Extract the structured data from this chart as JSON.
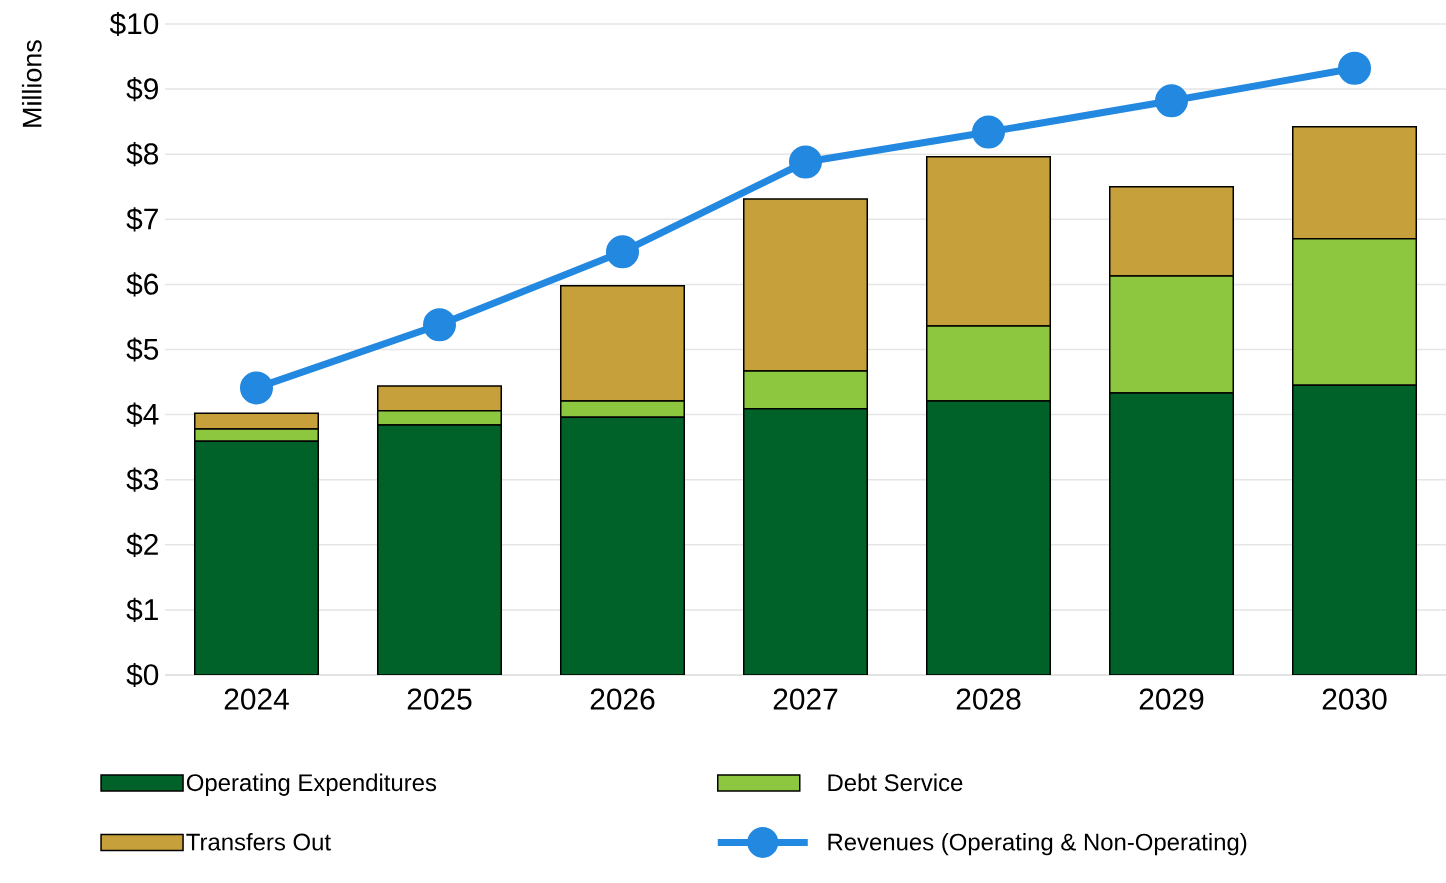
{
  "chart_data": {
    "type": "bar",
    "stacked": true,
    "ylabel": "Millions",
    "categories": [
      "2024",
      "2025",
      "2026",
      "2027",
      "2028",
      "2029",
      "2030"
    ],
    "series": [
      {
        "name": "Operating Expenditures",
        "color": "#006228",
        "values": [
          3.59,
          3.84,
          3.96,
          4.09,
          4.21,
          4.33,
          4.45
        ]
      },
      {
        "name": "Debt Service",
        "color": "#8dc63f",
        "values": [
          0.19,
          0.22,
          0.25,
          0.58,
          1.15,
          1.8,
          2.25
        ]
      },
      {
        "name": "Transfers Out",
        "color": "#c6a03a",
        "values": [
          0.24,
          0.38,
          1.77,
          2.64,
          2.6,
          1.37,
          1.72
        ]
      },
      {
        "name": "Revenues (Operating & Non-Operating)",
        "type": "line",
        "marker": "circle",
        "color": "#2288e0",
        "values": [
          4.41,
          5.38,
          6.5,
          7.88,
          8.34,
          8.82,
          9.32
        ]
      }
    ],
    "ylim": [
      0,
      10
    ],
    "yticks": [
      {
        "value": 0,
        "label": "$0"
      },
      {
        "value": 1,
        "label": "$1"
      },
      {
        "value": 2,
        "label": "$2"
      },
      {
        "value": 3,
        "label": "$3"
      },
      {
        "value": 4,
        "label": "$4"
      },
      {
        "value": 5,
        "label": "$5"
      },
      {
        "value": 6,
        "label": "$6"
      },
      {
        "value": 7,
        "label": "$7"
      },
      {
        "value": 8,
        "label": "$8"
      },
      {
        "value": 9,
        "label": "$9"
      },
      {
        "value": 10,
        "label": "$10"
      }
    ],
    "grid": "y",
    "legend": "bottom"
  }
}
